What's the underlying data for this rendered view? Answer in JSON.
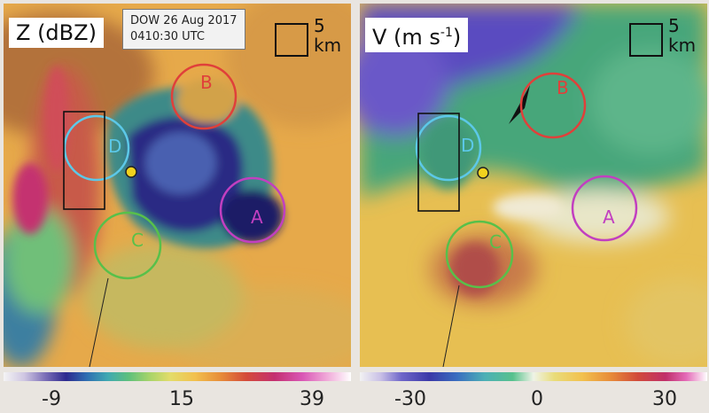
{
  "left_panel": {
    "label_main": "Z (dBZ)",
    "timestamp_line1": "DOW 26 Aug 2017",
    "timestamp_line2": "0410:30 UTC",
    "scale_value": "5",
    "scale_unit": "km",
    "circles": [
      {
        "label": "A",
        "color": "#c23fc0"
      },
      {
        "label": "B",
        "color": "#e0403a"
      },
      {
        "label": "C",
        "color": "#58c04a"
      },
      {
        "label": "D",
        "color": "#5cc8e8"
      }
    ],
    "colorbar_ticks": [
      "-9",
      "15",
      "39"
    ]
  },
  "right_panel": {
    "label_main": "V (m s",
    "label_sup": "-1",
    "label_close": ")",
    "scale_value": "5",
    "scale_unit": "km",
    "circles": [
      {
        "label": "A",
        "color": "#c23fc0"
      },
      {
        "label": "B",
        "color": "#e0403a"
      },
      {
        "label": "C",
        "color": "#58c04a"
      },
      {
        "label": "D",
        "color": "#5cc8e8"
      }
    ],
    "colorbar_ticks": [
      "-30",
      "0",
      "30"
    ]
  },
  "center_marker_color": "#f2d21e"
}
